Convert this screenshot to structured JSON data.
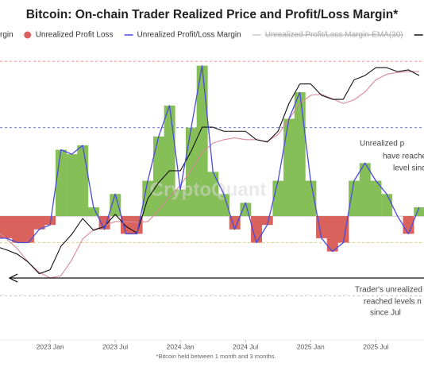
{
  "chart_data": {
    "type": "combo",
    "title": "Bitcoin: On-chain Trader Realized Price and Profit/Loss Margin*",
    "legend_partial_label": "rgin",
    "x": [
      "2022-08",
      "2022-09",
      "2022-10",
      "2022-11",
      "2022-12",
      "2023-01",
      "2023-02",
      "2023-03",
      "2023-04",
      "2023-05",
      "2023-06",
      "2023-07",
      "2023-08",
      "2023-09",
      "2023-10",
      "2023-11",
      "2023-12",
      "2024-01",
      "2024-02",
      "2024-03",
      "2024-04",
      "2024-05",
      "2024-06",
      "2024-07",
      "2024-08",
      "2024-09",
      "2024-10",
      "2024-11",
      "2024-12",
      "2025-01",
      "2025-02",
      "2025-03",
      "2025-04",
      "2025-05",
      "2025-06",
      "2025-07",
      "2025-08",
      "2025-09",
      "2025-10",
      "2025-11"
    ],
    "xlim": [
      "2022-08",
      "2025-11"
    ],
    "xticks": [
      {
        "value": "2023-01",
        "label": "2023 Jan"
      },
      {
        "value": "2023-07",
        "label": "2023 Jul"
      },
      {
        "value": "2024-01",
        "label": "2024 Jan"
      },
      {
        "value": "2024-07",
        "label": "2024 Jul"
      },
      {
        "value": "2025-01",
        "label": "2025 Jan"
      },
      {
        "value": "2025-07",
        "label": "2025 Jul"
      }
    ],
    "ylim": [
      -28,
      37
    ],
    "y2lim": [
      7600,
      137000
    ],
    "y2scale": "log",
    "series": [
      {
        "name": "Unrealized Profit Loss",
        "type": "bar",
        "color": "#d9625c",
        "positive_color": "#86bf58",
        "values": [
          -5,
          -5,
          -6,
          -6,
          -3,
          -2,
          15,
          14,
          16,
          2,
          -3,
          5,
          -4,
          -4,
          8,
          18,
          25,
          6,
          20,
          34,
          10,
          5,
          -3,
          3,
          -6,
          -2,
          8,
          22,
          28,
          8,
          -5,
          -8,
          -6,
          8,
          12,
          8,
          5,
          0,
          -4,
          2
        ]
      },
      {
        "name": "Unrealized Profit/Loss Margin",
        "type": "line",
        "color": "#4b4bdc",
        "values": [
          -5,
          -5,
          -6,
          -6,
          -3,
          -2,
          15,
          14,
          16,
          2,
          -3,
          5,
          -4,
          -4,
          8,
          18,
          25,
          6,
          20,
          34,
          10,
          5,
          -3,
          3,
          -6,
          -2,
          8,
          22,
          28,
          8,
          -5,
          -8,
          -6,
          8,
          12,
          8,
          5,
          0,
          -4,
          2
        ]
      },
      {
        "name": "Unrealized Profit/Loss Margin-EMA(30)",
        "type": "line",
        "color": "#e8a3b3",
        "hidden": true
      },
      {
        "type": "line",
        "axis": "y2",
        "color": "#d9899b",
        "values": [
          22900,
          21000,
          19000,
          16600,
          15000,
          14200,
          14500,
          17000,
          21000,
          23000,
          24000,
          25000,
          25000,
          24800,
          25000,
          28000,
          32000,
          36000,
          42000,
          50000,
          55000,
          57000,
          58000,
          57000,
          57000,
          56000,
          60000,
          70000,
          82000,
          89000,
          90000,
          86000,
          82000,
          85000,
          92000,
          104000,
          110000,
          112000,
          113000,
          113000
        ]
      },
      {
        "type": "line",
        "axis": "y2",
        "color": "#111111",
        "legend": true,
        "values": [
          19500,
          18800,
          18000,
          16600,
          14800,
          15400,
          19500,
          22000,
          25800,
          22900,
          23800,
          26900,
          23800,
          22300,
          31500,
          37000,
          41700,
          41700,
          50800,
          64600,
          64600,
          62000,
          62000,
          62000,
          57000,
          55600,
          62000,
          82000,
          99800,
          99800,
          89000,
          85500,
          85500,
          104000,
          108600,
          117500,
          117500,
          113000,
          115000,
          108600
        ]
      }
    ],
    "reference_lines": [
      {
        "value": 35,
        "color": "#e57373",
        "style": "dashed"
      },
      {
        "value": 20,
        "color": "#5c6bc0",
        "style": "dashed"
      },
      {
        "value": -6,
        "color": "#d4c060",
        "style": "dashed"
      },
      {
        "value": -18,
        "color": "#bbbbbb",
        "style": "dashed"
      },
      {
        "value": -14,
        "color": "#111111",
        "style": "arrow"
      }
    ],
    "annotations": [
      {
        "lines": [
          "Unrealized p",
          "have reache",
          "level sinc"
        ]
      },
      {
        "lines": [
          "Trader's unrealized",
          "reached levels n",
          "since Jul"
        ]
      }
    ],
    "watermark": "CryptoQuant",
    "footnote": "*Bitcoin held between 1 month and 3 months."
  }
}
